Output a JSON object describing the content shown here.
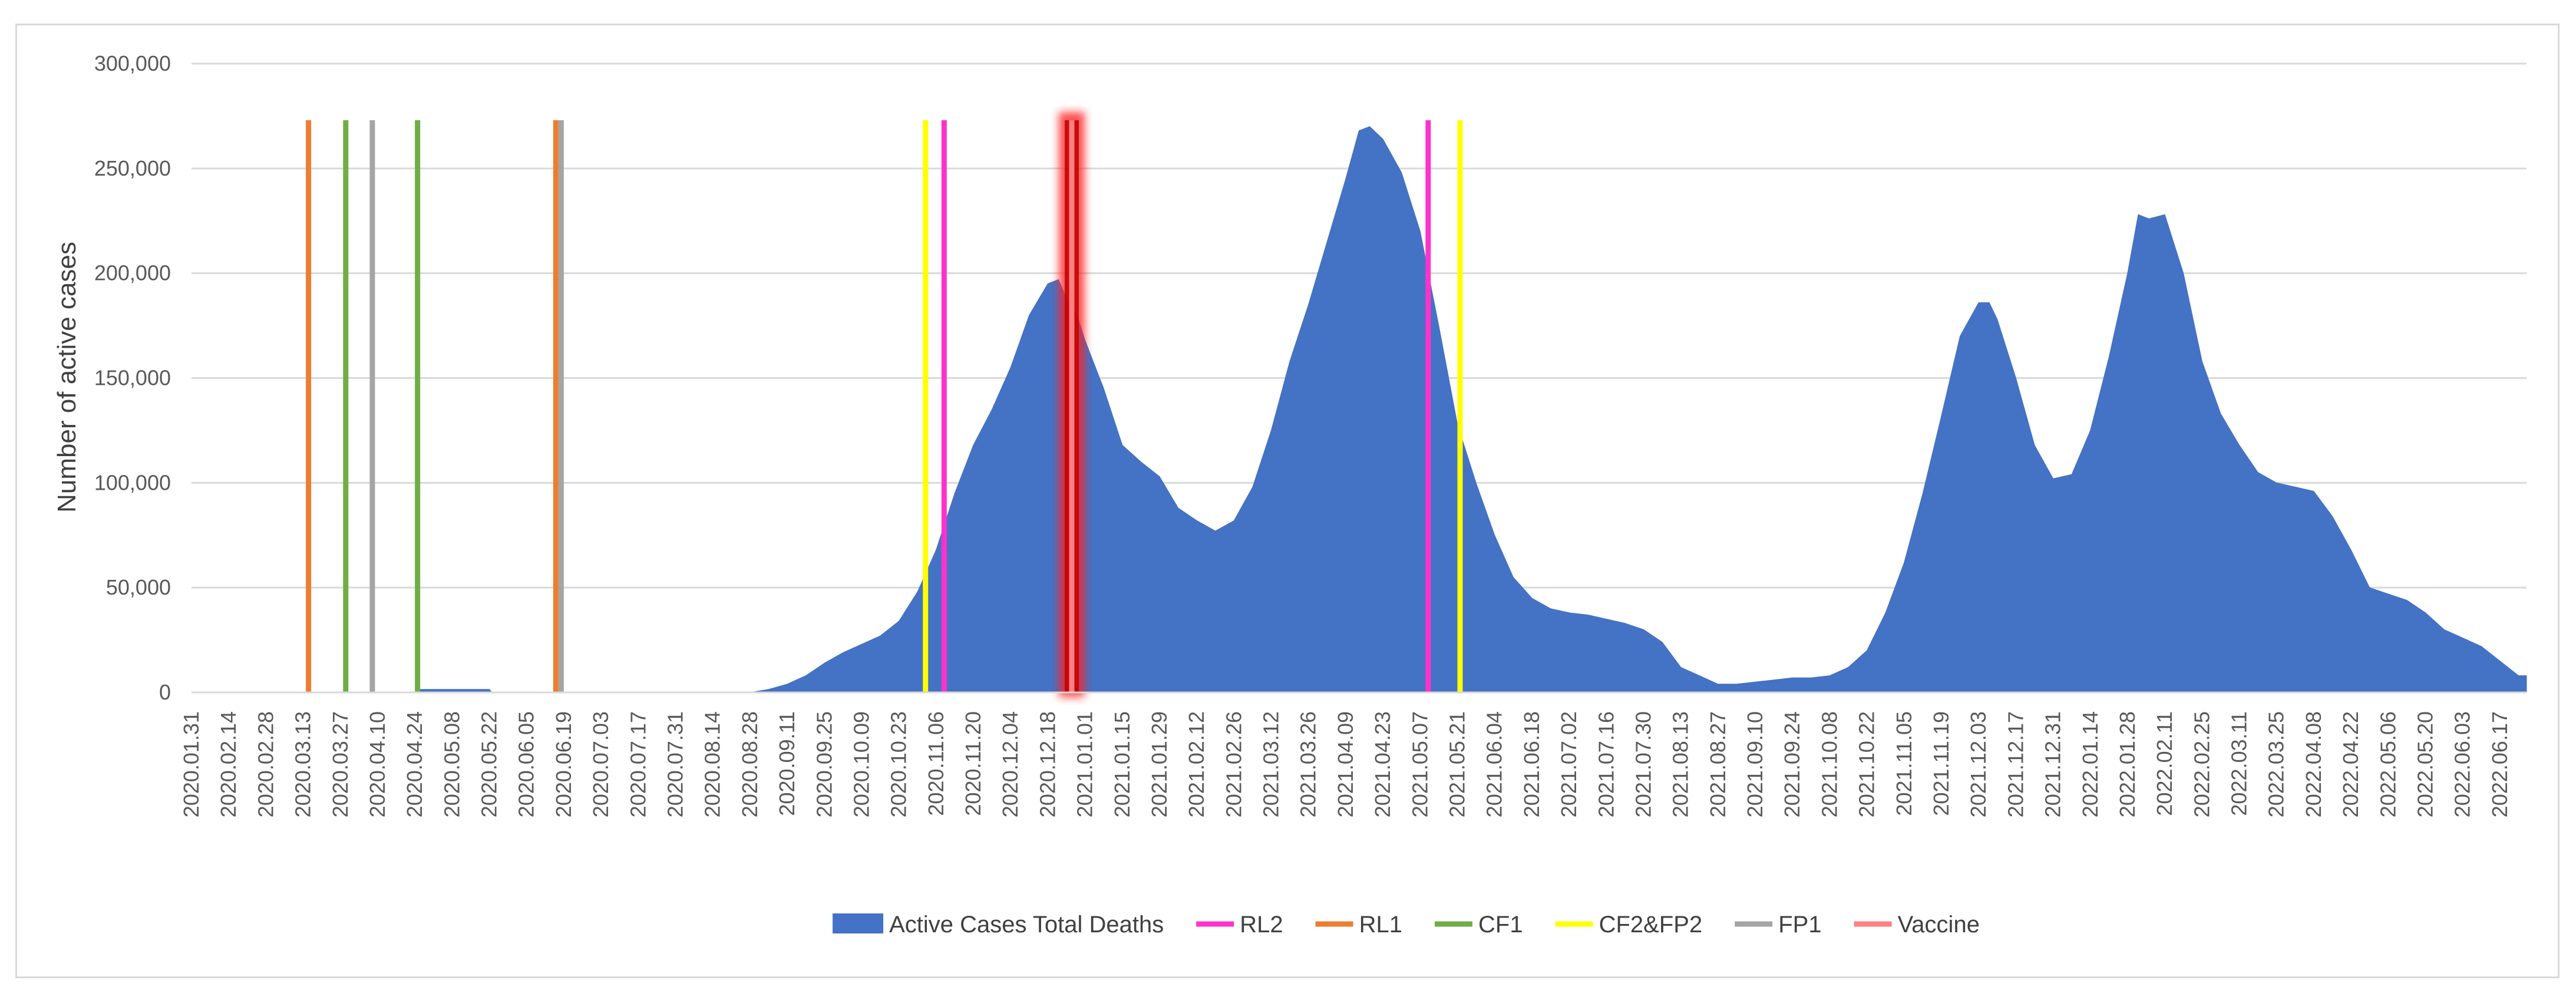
{
  "chart_data": {
    "type": "area",
    "title": "",
    "xlabel": "",
    "ylabel": "Number of active cases",
    "ylim": [
      0,
      300000
    ],
    "y_ticks": [
      0,
      50000,
      100000,
      150000,
      200000,
      250000,
      300000
    ],
    "y_tick_labels": [
      "0",
      "50,000",
      "100,000",
      "150,000",
      "200,000",
      "250,000",
      "300,000"
    ],
    "grid": true,
    "legend_position": "bottom",
    "x_tick_labels": [
      "2020.01.31",
      "2020.02.14",
      "2020.02.28",
      "2020.03.13",
      "2020.03.27",
      "2020.04.10",
      "2020.04.24",
      "2020.05.08",
      "2020.05.22",
      "2020.06.05",
      "2020.06.19",
      "2020.07.03",
      "2020.07.17",
      "2020.07.31",
      "2020.08.14",
      "2020.08.28",
      "2020.09.11",
      "2020.09.25",
      "2020.10.09",
      "2020.10.23",
      "2020.11.06",
      "2020.11.20",
      "2020.12.04",
      "2020.12.18",
      "2021.01.01",
      "2021.01.15",
      "2021.01.29",
      "2021.02.12",
      "2021.02.26",
      "2021.03.12",
      "2021.03.26",
      "2021.04.09",
      "2021.04.23",
      "2021.05.07",
      "2021.05.21",
      "2021.06.04",
      "2021.06.18",
      "2021.07.02",
      "2021.07.16",
      "2021.07.30",
      "2021.08.13",
      "2021.08.27",
      "2021.09.10",
      "2021.09.24",
      "2021.10.08",
      "2021.10.22",
      "2021.11.05",
      "2021.11.19",
      "2021.12.03",
      "2021.12.17",
      "2021.12.31",
      "2022.01.14",
      "2022.01.28",
      "2022.02.11",
      "2022.02.25",
      "2022.03.11",
      "2022.03.25",
      "2022.04.08",
      "2022.04.22",
      "2022.05.06",
      "2022.05.20",
      "2022.06.03",
      "2022.06.17"
    ],
    "series": [
      {
        "name": "Active Cases Total Deaths",
        "color": "#4472c4",
        "points": [
          [
            "2020.01.31",
            0
          ],
          [
            "2020.04.24",
            0
          ],
          [
            "2020.04.25",
            1500
          ],
          [
            "2020.05.22",
            1500
          ],
          [
            "2020.05.23",
            0
          ],
          [
            "2020.08.28",
            0
          ],
          [
            "2020.09.04",
            1500
          ],
          [
            "2020.09.11",
            4000
          ],
          [
            "2020.09.18",
            8000
          ],
          [
            "2020.09.25",
            14000
          ],
          [
            "2020.10.02",
            19000
          ],
          [
            "2020.10.09",
            23000
          ],
          [
            "2020.10.16",
            27000
          ],
          [
            "2020.10.23",
            34000
          ],
          [
            "2020.10.30",
            48000
          ],
          [
            "2020.11.06",
            68000
          ],
          [
            "2020.11.13",
            95000
          ],
          [
            "2020.11.20",
            118000
          ],
          [
            "2020.11.27",
            135000
          ],
          [
            "2020.12.04",
            155000
          ],
          [
            "2020.12.11",
            180000
          ],
          [
            "2020.12.18",
            195000
          ],
          [
            "2020.12.22",
            197000
          ],
          [
            "2020.12.25",
            188000
          ],
          [
            "2020.12.29",
            180000
          ],
          [
            "2021.01.01",
            168000
          ],
          [
            "2021.01.08",
            145000
          ],
          [
            "2021.01.15",
            118000
          ],
          [
            "2021.01.22",
            110000
          ],
          [
            "2021.01.29",
            103000
          ],
          [
            "2021.02.05",
            88000
          ],
          [
            "2021.02.12",
            82000
          ],
          [
            "2021.02.19",
            77000
          ],
          [
            "2021.02.26",
            82000
          ],
          [
            "2021.03.05",
            98000
          ],
          [
            "2021.03.12",
            125000
          ],
          [
            "2021.03.19",
            158000
          ],
          [
            "2021.03.26",
            185000
          ],
          [
            "2021.04.02",
            215000
          ],
          [
            "2021.04.09",
            245000
          ],
          [
            "2021.04.14",
            268000
          ],
          [
            "2021.04.18",
            270000
          ],
          [
            "2021.04.23",
            264000
          ],
          [
            "2021.04.30",
            248000
          ],
          [
            "2021.05.07",
            220000
          ],
          [
            "2021.05.14",
            175000
          ],
          [
            "2021.05.21",
            128000
          ],
          [
            "2021.05.28",
            100000
          ],
          [
            "2021.06.04",
            75000
          ],
          [
            "2021.06.11",
            55000
          ],
          [
            "2021.06.18",
            45000
          ],
          [
            "2021.06.25",
            40000
          ],
          [
            "2021.07.02",
            38000
          ],
          [
            "2021.07.09",
            37000
          ],
          [
            "2021.07.16",
            35000
          ],
          [
            "2021.07.23",
            33000
          ],
          [
            "2021.07.30",
            30000
          ],
          [
            "2021.08.06",
            24000
          ],
          [
            "2021.08.13",
            12000
          ],
          [
            "2021.08.20",
            8000
          ],
          [
            "2021.08.27",
            4000
          ],
          [
            "2021.09.03",
            4000
          ],
          [
            "2021.09.10",
            5000
          ],
          [
            "2021.09.17",
            6000
          ],
          [
            "2021.09.24",
            7000
          ],
          [
            "2021.10.01",
            7000
          ],
          [
            "2021.10.08",
            8000
          ],
          [
            "2021.10.15",
            12000
          ],
          [
            "2021.10.22",
            20000
          ],
          [
            "2021.10.29",
            38000
          ],
          [
            "2021.11.05",
            62000
          ],
          [
            "2021.11.12",
            95000
          ],
          [
            "2021.11.19",
            132000
          ],
          [
            "2021.11.26",
            170000
          ],
          [
            "2021.12.03",
            186000
          ],
          [
            "2021.12.07",
            186000
          ],
          [
            "2021.12.10",
            178000
          ],
          [
            "2021.12.17",
            150000
          ],
          [
            "2021.12.24",
            118000
          ],
          [
            "2021.12.31",
            102000
          ],
          [
            "2022.01.07",
            104000
          ],
          [
            "2022.01.14",
            125000
          ],
          [
            "2022.01.21",
            160000
          ],
          [
            "2022.01.28",
            200000
          ],
          [
            "2022.02.01",
            228000
          ],
          [
            "2022.02.05",
            226000
          ],
          [
            "2022.02.11",
            228000
          ],
          [
            "2022.02.18",
            200000
          ],
          [
            "2022.02.25",
            158000
          ],
          [
            "2022.03.04",
            133000
          ],
          [
            "2022.03.11",
            118000
          ],
          [
            "2022.03.18",
            105000
          ],
          [
            "2022.03.25",
            100000
          ],
          [
            "2022.04.01",
            98000
          ],
          [
            "2022.04.08",
            96000
          ],
          [
            "2022.04.15",
            84000
          ],
          [
            "2022.04.22",
            68000
          ],
          [
            "2022.04.29",
            50000
          ],
          [
            "2022.05.06",
            47000
          ],
          [
            "2022.05.13",
            44000
          ],
          [
            "2022.05.20",
            38000
          ],
          [
            "2022.05.27",
            30000
          ],
          [
            "2022.06.03",
            26000
          ],
          [
            "2022.06.10",
            22000
          ],
          [
            "2022.06.17",
            15000
          ],
          [
            "2022.06.24",
            8000
          ],
          [
            "2022.06.27",
            8000
          ]
        ]
      }
    ],
    "markers": [
      {
        "name": "RL2",
        "color": "#ff33cc",
        "dates": [
          "2020.11.09",
          "2021.05.10"
        ],
        "top": 273000
      },
      {
        "name": "RL1",
        "color": "#ed7d31",
        "dates": [
          "2020.03.15",
          "2020.06.16"
        ],
        "top": 273000
      },
      {
        "name": "CF1",
        "color": "#70ad47",
        "dates": [
          "2020.03.29",
          "2020.04.25"
        ],
        "top": 273000
      },
      {
        "name": "CF2&FP2",
        "color": "#ffff00",
        "dates": [
          "2020.11.02",
          "2021.05.22"
        ],
        "top": 273000
      },
      {
        "name": "FP1",
        "color": "#a5a5a5",
        "dates": [
          "2020.04.08",
          "2020.06.18"
        ],
        "top": 273000
      },
      {
        "name": "Vaccine",
        "color": "#ff8080",
        "dates": [
          "2020.12.27"
        ],
        "top": 273000,
        "highlight_color": "#c00000"
      }
    ],
    "legend": [
      {
        "label": "Active Cases Total Deaths",
        "color": "#4472c4",
        "kind": "area"
      },
      {
        "label": "RL2",
        "color": "#ff33cc",
        "kind": "line"
      },
      {
        "label": "RL1",
        "color": "#ed7d31",
        "kind": "line"
      },
      {
        "label": "CF1",
        "color": "#70ad47",
        "kind": "line"
      },
      {
        "label": "CF2&FP2",
        "color": "#ffff00",
        "kind": "line"
      },
      {
        "label": "FP1",
        "color": "#a5a5a5",
        "kind": "line"
      },
      {
        "label": "Vaccine",
        "color": "#ff8080",
        "kind": "line"
      }
    ]
  }
}
